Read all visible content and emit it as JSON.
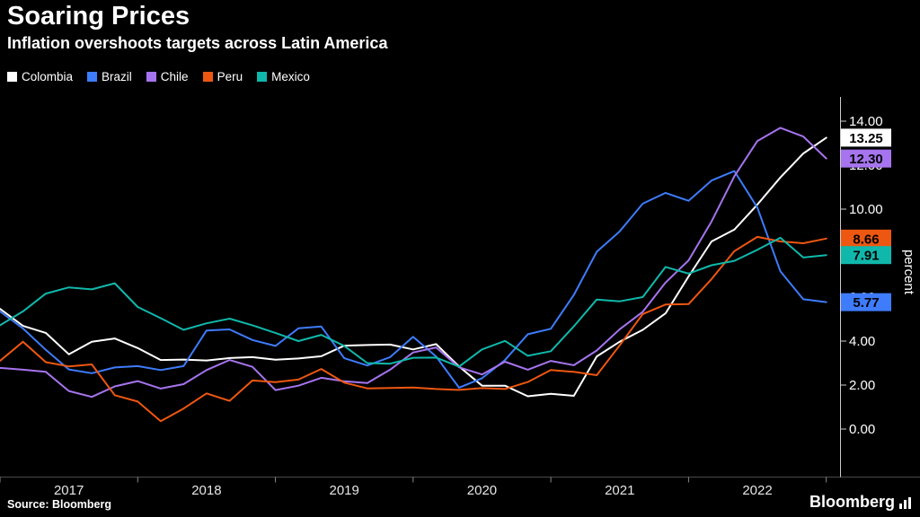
{
  "title": "Soaring Prices",
  "subtitle": "Inflation overshoots targets across Latin America",
  "source": "Source: Bloomberg",
  "brand": "Bloomberg",
  "axis": {
    "y_label": "percent",
    "y_ticks": [
      {
        "value": 14,
        "label": "14.00"
      },
      {
        "value": 12,
        "label": "12.00"
      },
      {
        "value": 10,
        "label": "10.00"
      },
      {
        "value": 8,
        "label": "8.00"
      },
      {
        "value": 6,
        "label": "6.00"
      },
      {
        "value": 4,
        "label": "4.00"
      },
      {
        "value": 2,
        "label": "2.00"
      },
      {
        "value": 0,
        "label": "0.00"
      }
    ],
    "x_ticks": [
      "2017",
      "2018",
      "2019",
      "2020",
      "2021",
      "2022"
    ]
  },
  "chart_data": {
    "type": "line",
    "title": "Soaring Prices",
    "subtitle": "Inflation overshoots targets across Latin America",
    "ylabel": "percent",
    "xlabel": "",
    "xlim": [
      2017,
      2023.1
    ],
    "ylim": [
      0,
      14
    ],
    "grid": false,
    "legend_position": "top",
    "x": [
      2017.0,
      2017.167,
      2017.333,
      2017.5,
      2017.667,
      2017.833,
      2018.0,
      2018.167,
      2018.333,
      2018.5,
      2018.667,
      2018.833,
      2019.0,
      2019.167,
      2019.333,
      2019.5,
      2019.667,
      2019.833,
      2020.0,
      2020.167,
      2020.333,
      2020.5,
      2020.667,
      2020.833,
      2021.0,
      2021.167,
      2021.333,
      2021.5,
      2021.667,
      2021.833,
      2022.0,
      2022.167,
      2022.333,
      2022.5,
      2022.667,
      2022.833,
      2023.0
    ],
    "series": [
      {
        "name": "Colombia",
        "color": "#ffffff",
        "end_label": "13.25",
        "values": [
          5.47,
          4.69,
          4.37,
          3.4,
          3.97,
          4.12,
          3.68,
          3.14,
          3.16,
          3.12,
          3.23,
          3.27,
          3.15,
          3.21,
          3.31,
          3.79,
          3.82,
          3.84,
          3.62,
          3.86,
          2.85,
          1.97,
          1.97,
          1.49,
          1.6,
          1.51,
          3.3,
          3.97,
          4.51,
          5.26,
          6.94,
          8.53,
          9.07,
          10.21,
          11.44,
          12.53,
          13.25
        ]
      },
      {
        "name": "Brazil",
        "color": "#3e7cfb",
        "end_label": "5.77",
        "values": [
          5.35,
          4.57,
          3.6,
          2.71,
          2.54,
          2.8,
          2.86,
          2.68,
          2.86,
          4.48,
          4.53,
          4.05,
          3.78,
          4.58,
          4.66,
          3.22,
          2.89,
          3.27,
          4.19,
          3.3,
          1.88,
          2.31,
          3.14,
          4.31,
          4.56,
          6.1,
          8.06,
          8.99,
          10.25,
          10.74,
          10.38,
          11.3,
          11.73,
          10.07,
          7.17,
          5.9,
          5.77
        ]
      },
      {
        "name": "Chile",
        "color": "#a674ee",
        "end_label": "12.30",
        "values": [
          2.78,
          2.7,
          2.6,
          1.73,
          1.46,
          1.94,
          2.18,
          1.84,
          2.04,
          2.68,
          3.14,
          2.83,
          1.77,
          1.97,
          2.33,
          2.17,
          2.09,
          2.7,
          3.48,
          3.71,
          2.81,
          2.48,
          3.06,
          2.7,
          3.1,
          2.9,
          3.57,
          4.54,
          5.33,
          6.66,
          7.67,
          9.44,
          11.5,
          13.1,
          13.7,
          13.3,
          12.3
        ]
      },
      {
        "name": "Peru",
        "color": "#ee5711",
        "end_label": "8.66",
        "values": [
          3.1,
          3.97,
          3.04,
          2.85,
          2.94,
          1.54,
          1.25,
          0.36,
          0.93,
          1.62,
          1.28,
          2.21,
          2.13,
          2.25,
          2.73,
          2.11,
          1.85,
          1.87,
          1.89,
          1.82,
          1.78,
          1.86,
          1.82,
          2.14,
          2.68,
          2.6,
          2.45,
          3.81,
          5.23,
          5.66,
          5.68,
          6.82,
          8.09,
          8.74,
          8.53,
          8.45,
          8.66
        ]
      },
      {
        "name": "Mexico",
        "color": "#10b8ab",
        "end_label": "7.91",
        "values": [
          4.72,
          5.35,
          6.16,
          6.44,
          6.35,
          6.63,
          5.55,
          5.04,
          4.51,
          4.81,
          5.02,
          4.72,
          4.37,
          4.0,
          4.28,
          3.78,
          3.0,
          2.97,
          3.24,
          3.25,
          2.84,
          3.62,
          4.01,
          3.33,
          3.54,
          4.67,
          5.89,
          5.81,
          6.0,
          7.37,
          7.07,
          7.45,
          7.65,
          8.15,
          8.7,
          7.8,
          7.91
        ]
      }
    ]
  }
}
